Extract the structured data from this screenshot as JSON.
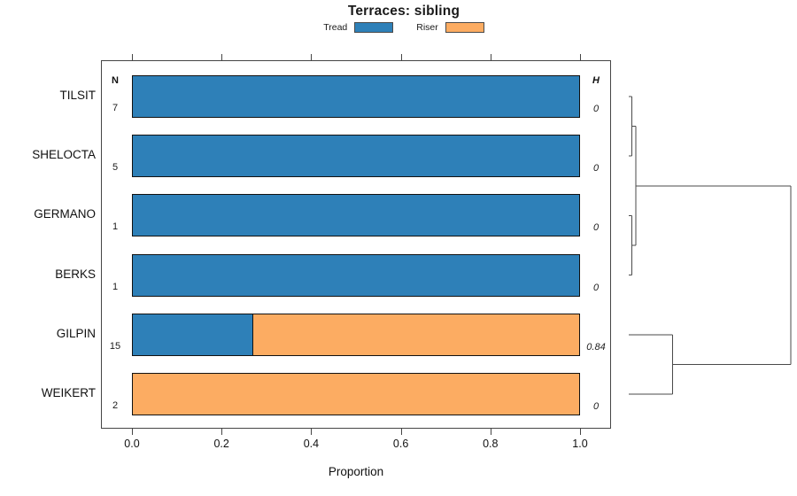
{
  "chart_data": {
    "type": "bar",
    "orientation": "horizontal-stacked",
    "title": "Terraces: sibling",
    "xlabel": "Proportion",
    "categories": [
      "TILSIT",
      "SHELOCTA",
      "GERMANO",
      "BERKS",
      "GILPIN",
      "WEIKERT"
    ],
    "columns": {
      "n_header": "N",
      "h_header": "H"
    },
    "n_values": [
      "7",
      "5",
      "1",
      "1",
      "15",
      "2"
    ],
    "h_values": [
      "0",
      "0",
      "0",
      "0",
      "0.84",
      "0"
    ],
    "series": [
      {
        "name": "Tread",
        "color": "#2E80B8",
        "values": [
          1.0,
          1.0,
          1.0,
          1.0,
          0.27,
          0.0
        ]
      },
      {
        "name": "Riser",
        "color": "#FCAC62",
        "values": [
          0.0,
          0.0,
          0.0,
          0.0,
          0.73,
          1.0
        ]
      }
    ],
    "xlim": [
      0.0,
      1.0
    ],
    "x_ticks": [
      0.0,
      0.2,
      0.4,
      0.6,
      0.8,
      1.0
    ],
    "x_tick_labels": [
      "0.0",
      "0.2",
      "0.4",
      "0.6",
      "0.8",
      "1.0"
    ],
    "legend_position": "top",
    "grid": false,
    "bar_border_color": "#111111",
    "axis_color": "#454545",
    "dendrogram": {
      "side": "right",
      "line_color": "#4a4a4a",
      "leaf_order_indices": [
        0,
        1,
        2,
        3,
        4,
        5
      ],
      "merges": [
        {
          "children": [
            0,
            1
          ],
          "height": 0.018
        },
        {
          "children": [
            2,
            3
          ],
          "height": 0.018
        },
        {
          "children": [
            6,
            7
          ],
          "height": 0.044
        },
        {
          "children": [
            4,
            5
          ],
          "height": 0.27
        },
        {
          "children": [
            8,
            9
          ],
          "height": 1.0
        }
      ]
    }
  }
}
